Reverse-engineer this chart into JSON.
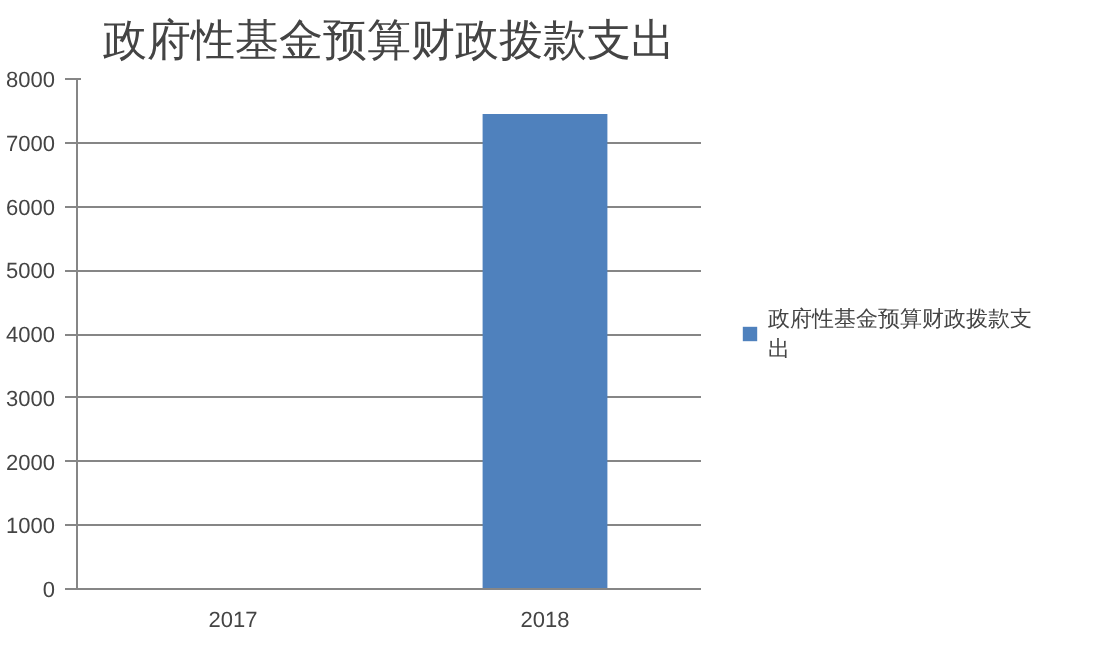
{
  "chart_data": {
    "type": "bar",
    "title": "政府性基金预算财政拨款支出",
    "categories": [
      "2017",
      "2018"
    ],
    "series": [
      {
        "name": "政府性基金预算财政拨款支出",
        "color": "#4f81bd",
        "values": [
          null,
          7450
        ]
      }
    ],
    "ylim": [
      0,
      8000
    ],
    "yticks": [
      0,
      1000,
      2000,
      3000,
      4000,
      5000,
      6000,
      7000,
      8000
    ],
    "grid": "y",
    "legend": "right"
  }
}
